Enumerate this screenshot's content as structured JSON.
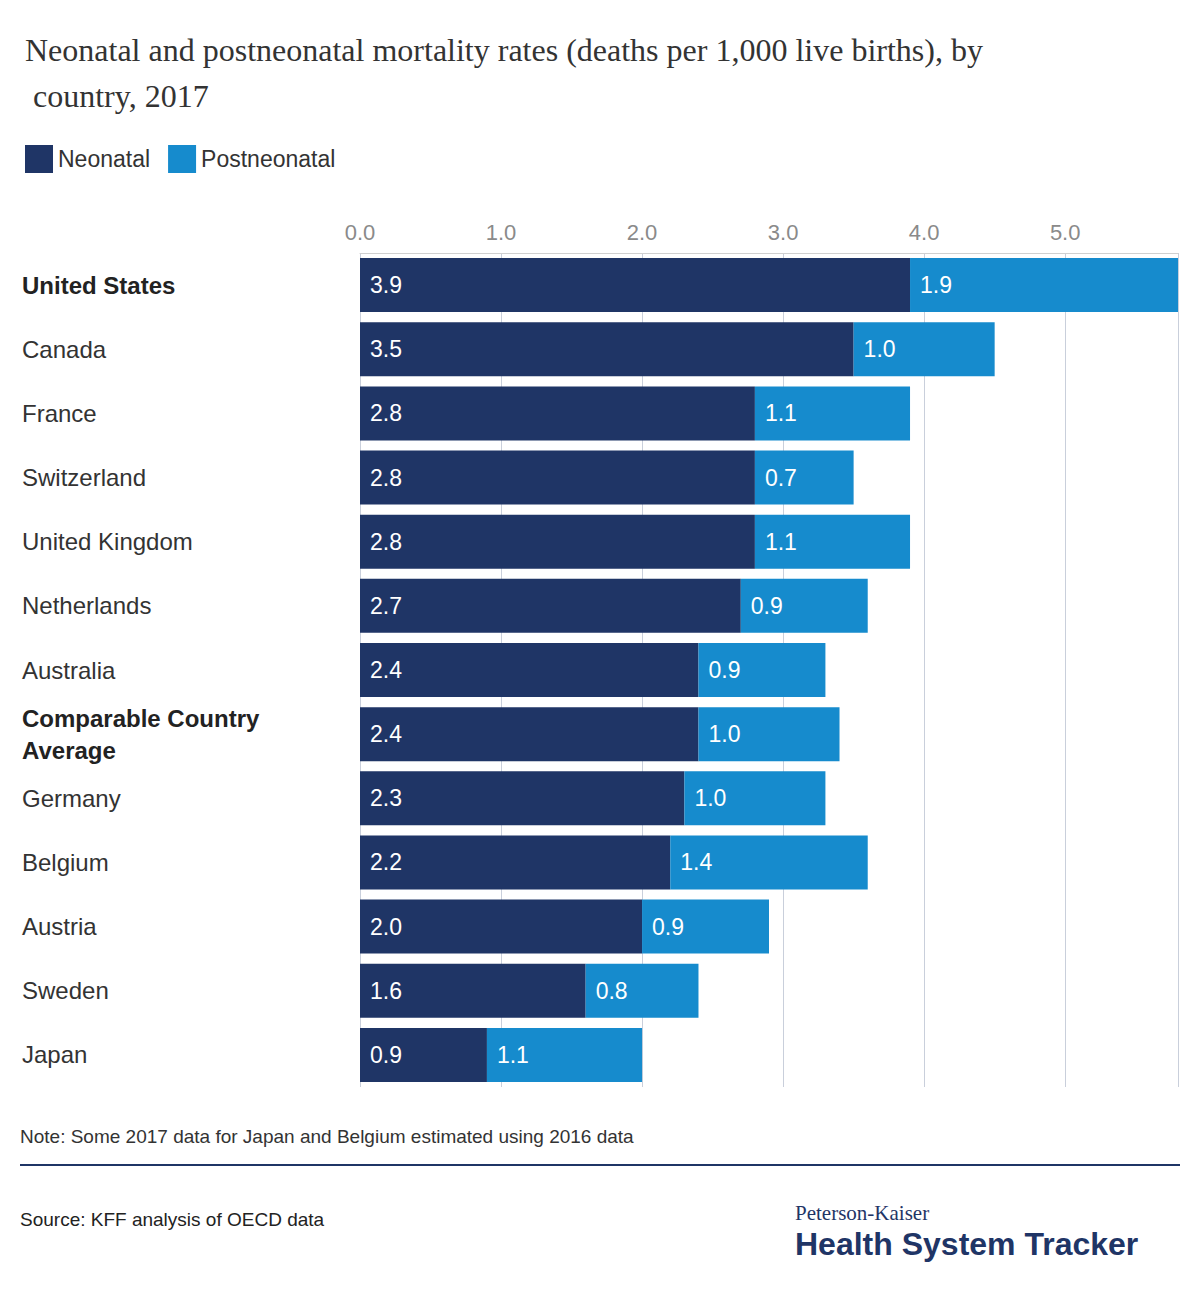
{
  "chart_data": {
    "type": "bar",
    "orientation": "horizontal",
    "stacked": true,
    "data_labels": true,
    "grid": true,
    "legend": "top-left",
    "title": "Neonatal and postneonatal mortality rates (deaths per 1,000 live births), by country, 2017",
    "categories": [
      "United States",
      "Canada",
      "France",
      "Switzerland",
      "United Kingdom",
      "Netherlands",
      "Australia",
      "Comparable Country Average",
      "Germany",
      "Belgium",
      "Austria",
      "Sweden",
      "Japan"
    ],
    "series": [
      {
        "name": "Neonatal",
        "color": "#1f3566",
        "values": [
          3.9,
          3.5,
          2.8,
          2.8,
          2.8,
          2.7,
          2.4,
          2.4,
          2.3,
          2.2,
          2.0,
          1.6,
          0.9
        ],
        "value_labels": [
          "3.9",
          "3.5",
          "2.8",
          "2.8",
          "2.8",
          "2.7",
          "2.4",
          "2.4",
          "2.3",
          "2.2",
          "2.0",
          "1.6",
          "0.9"
        ]
      },
      {
        "name": "Postneonatal",
        "color": "#168bcd",
        "values": [
          1.9,
          1.0,
          1.1,
          0.7,
          1.1,
          0.9,
          0.9,
          1.0,
          1.0,
          1.4,
          0.9,
          0.8,
          1.1
        ],
        "value_labels": [
          "1.9",
          "1.0",
          "1.1",
          "0.7",
          "1.1",
          "0.9",
          "0.9",
          "1.0",
          "1.0",
          "1.4",
          "0.9",
          "0.8",
          "1.1"
        ]
      }
    ],
    "xlim": [
      0,
      5.8
    ],
    "xticks": [
      {
        "value": 0,
        "label": "0.0"
      },
      {
        "value": 1,
        "label": "1.0"
      },
      {
        "value": 2,
        "label": "2.0"
      },
      {
        "value": 3,
        "label": "3.0"
      },
      {
        "value": 4,
        "label": "4.0"
      },
      {
        "value": 5,
        "label": "5.0"
      }
    ],
    "annotations": [
      "Note: Some 2017 data for Japan and Belgium estimated using 2016 data",
      "Source: KFF analysis of OECD data",
      "Peterson-Kaiser",
      "Health System Tracker"
    ]
  }
}
